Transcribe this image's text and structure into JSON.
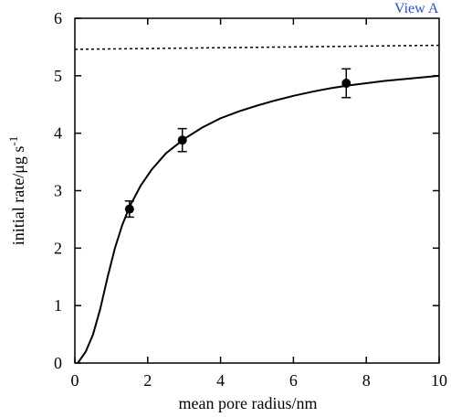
{
  "link": {
    "label": "View A"
  },
  "chart_data": {
    "type": "scatter",
    "xlabel": "mean pore radius/nm",
    "ylabel": "initial rate/μg s",
    "ylabel_superscript": "-1",
    "xlim": [
      0,
      10
    ],
    "ylim": [
      0,
      6
    ],
    "x_ticks": [
      0,
      2,
      4,
      6,
      8,
      10
    ],
    "y_ticks": [
      0,
      1,
      2,
      3,
      4,
      5,
      6
    ],
    "grid": false,
    "series": [
      {
        "type": "scatter",
        "x": [
          1.5,
          2.95,
          7.45
        ],
        "y": [
          2.68,
          3.88,
          4.87
        ],
        "yerr": [
          0.14,
          0.2,
          0.25
        ]
      },
      {
        "type": "line",
        "style": "solid",
        "x": [
          0.08,
          0.3,
          0.5,
          0.7,
          0.9,
          1.1,
          1.3,
          1.5,
          1.8,
          2.1,
          2.5,
          3.0,
          3.5,
          4.0,
          4.5,
          5.0,
          5.5,
          6.0,
          6.5,
          7.0,
          7.5,
          8.0,
          8.5,
          9.0,
          9.5,
          10.0
        ],
        "y": [
          0.0,
          0.2,
          0.5,
          0.95,
          1.5,
          2.0,
          2.4,
          2.72,
          3.08,
          3.36,
          3.65,
          3.9,
          4.1,
          4.26,
          4.38,
          4.48,
          4.57,
          4.65,
          4.72,
          4.78,
          4.83,
          4.87,
          4.91,
          4.94,
          4.97,
          5.0
        ]
      },
      {
        "type": "line",
        "style": "dotted",
        "x": [
          0,
          10
        ],
        "y": [
          5.46,
          5.53
        ]
      }
    ]
  }
}
